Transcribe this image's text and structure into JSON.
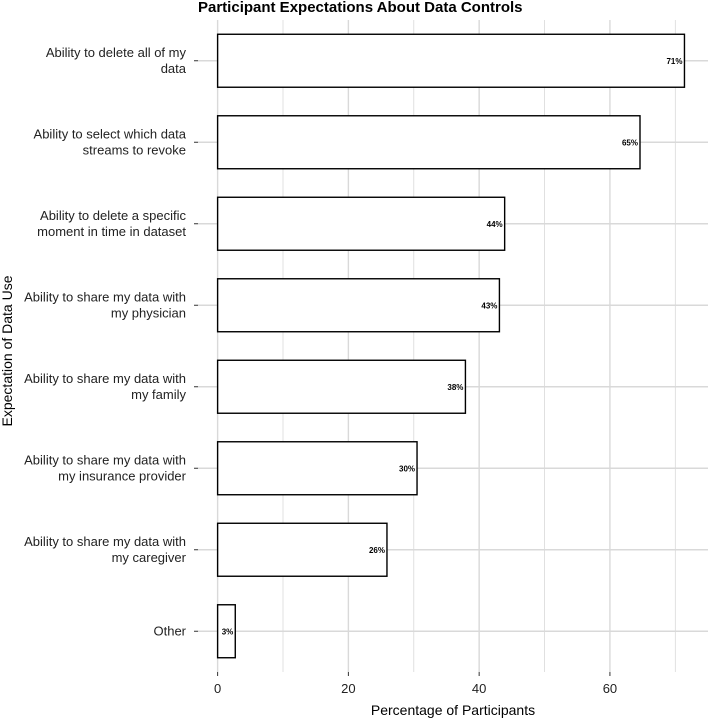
{
  "chart_data": {
    "type": "bar",
    "orientation": "horizontal",
    "title": "Participant Expectations About Data Controls",
    "xlabel": "Percentage of Participants",
    "ylabel": "Expectation of Data Use",
    "xlim": [
      -3,
      75
    ],
    "xticks": [
      0,
      20,
      40,
      60
    ],
    "grid": true,
    "categories": [
      [
        "Ability to delete all of my",
        "data"
      ],
      [
        "Ability to select which data",
        "streams to revoke"
      ],
      [
        "Ability to delete a specific",
        "moment in time in dataset"
      ],
      [
        "Ability to share my data with",
        "my physician"
      ],
      [
        "Ability to share my data with",
        "my family"
      ],
      [
        "Ability to share my data with",
        "my insurance provider"
      ],
      [
        "Ability to share my data with",
        "my caregiver"
      ],
      [
        "Other"
      ]
    ],
    "values": [
      71.4,
      64.6,
      43.9,
      43.1,
      37.9,
      30.5,
      25.9,
      2.7
    ],
    "data_labels": [
      "71%",
      "65%",
      "44%",
      "43%",
      "38%",
      "30%",
      "26%",
      "3%"
    ],
    "colors": {
      "bar_fill": "#ffffff",
      "bar_stroke": "#000000",
      "grid": "#d9d9d9",
      "background": "#ffffff"
    }
  }
}
